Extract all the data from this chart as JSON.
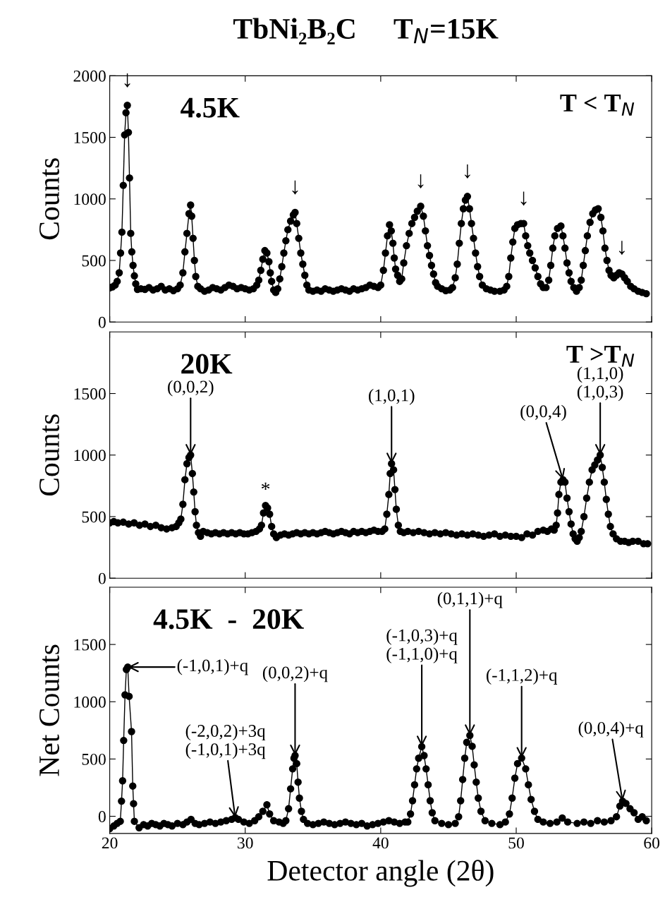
{
  "chart_data": [
    {
      "type": "line",
      "title": "TbNi₂B₂C     T$_{N}$=15K",
      "ylabel": "Counts",
      "marker": "circle",
      "line_style": "solid",
      "grid": false,
      "legend": false,
      "tick_labels": "y",
      "xlim": [
        20,
        60
      ],
      "xticks": [
        20,
        30,
        40,
        50,
        60
      ],
      "ylim": [
        0,
        2000
      ],
      "yticks": [
        0,
        500,
        1000,
        1500,
        2000
      ],
      "annotations": [
        "4.5K",
        "T < T$_{N}$",
        {
          "text": "↓",
          "x": 21.3,
          "y": 1760
        },
        {
          "text": "↓",
          "x": 33.68,
          "y": 890
        },
        {
          "text": "↓",
          "x": 42.95,
          "y": 940
        },
        {
          "text": "↓",
          "x": 46.4,
          "y": 1020
        },
        {
          "text": "↓",
          "x": 50.55,
          "y": 800
        },
        {
          "text": "↓",
          "x": 57.8,
          "y": 400
        }
      ],
      "series": [
        {
          "color": "#000000",
          "x": [
            20.0,
            20.2,
            20.4,
            20.55,
            20.7,
            20.8,
            20.9,
            21.0,
            21.1,
            21.2,
            21.3,
            21.38,
            21.46,
            21.55,
            21.63,
            21.72,
            21.82,
            21.92,
            22.05,
            22.3,
            22.6,
            22.9,
            23.2,
            23.5,
            23.8,
            24.1,
            24.4,
            24.7,
            25.0,
            25.2,
            25.4,
            25.55,
            25.7,
            25.85,
            25.97,
            26.05,
            26.15,
            26.25,
            26.35,
            26.5,
            26.7,
            27.0,
            27.3,
            27.6,
            27.9,
            28.2,
            28.5,
            28.8,
            29.1,
            29.4,
            29.7,
            30.0,
            30.3,
            30.6,
            30.85,
            31.0,
            31.15,
            31.3,
            31.45,
            31.6,
            31.75,
            31.85,
            31.95,
            32.1,
            32.25,
            32.4,
            32.55,
            32.7,
            32.85,
            33.0,
            33.15,
            33.35,
            33.55,
            33.68,
            33.8,
            33.95,
            34.1,
            34.25,
            34.4,
            34.55,
            34.7,
            35.0,
            35.3,
            35.6,
            35.9,
            36.2,
            36.5,
            36.8,
            37.1,
            37.4,
            37.7,
            38.0,
            38.3,
            38.6,
            38.9,
            39.2,
            39.5,
            39.8,
            40.0,
            40.2,
            40.35,
            40.5,
            40.65,
            40.78,
            40.9,
            41.0,
            41.1,
            41.25,
            41.4,
            41.55,
            41.7,
            41.9,
            42.1,
            42.3,
            42.5,
            42.7,
            42.95,
            43.15,
            43.3,
            43.45,
            43.6,
            43.75,
            43.9,
            44.05,
            44.2,
            44.5,
            44.8,
            45.1,
            45.3,
            45.5,
            45.65,
            45.8,
            45.95,
            46.1,
            46.25,
            46.4,
            46.55,
            46.7,
            46.85,
            47.0,
            47.15,
            47.3,
            47.5,
            47.8,
            48.1,
            48.4,
            48.8,
            49.1,
            49.3,
            49.45,
            49.6,
            49.75,
            49.9,
            50.1,
            50.35,
            50.55,
            50.7,
            50.85,
            51.0,
            51.2,
            51.4,
            51.6,
            51.8,
            52.0,
            52.2,
            52.4,
            52.55,
            52.7,
            52.85,
            53.05,
            53.3,
            53.45,
            53.6,
            53.75,
            53.9,
            54.05,
            54.25,
            54.45,
            54.65,
            54.8,
            54.95,
            55.1,
            55.25,
            55.45,
            55.65,
            55.85,
            56.05,
            56.25,
            56.4,
            56.55,
            56.7,
            56.85,
            57.0,
            57.2,
            57.4,
            57.6,
            57.8,
            58.0,
            58.2,
            58.45,
            58.7,
            59.0,
            59.3,
            59.6
          ],
          "values": [
            278,
            285,
            300,
            330,
            400,
            560,
            730,
            1110,
            1520,
            1700,
            1760,
            1540,
            1170,
            720,
            570,
            460,
            375,
            310,
            265,
            270,
            265,
            280,
            260,
            270,
            290,
            260,
            270,
            255,
            270,
            300,
            400,
            570,
            720,
            880,
            950,
            860,
            680,
            500,
            370,
            290,
            270,
            250,
            260,
            280,
            270,
            260,
            280,
            300,
            290,
            270,
            280,
            270,
            260,
            270,
            300,
            340,
            420,
            510,
            580,
            560,
            490,
            400,
            330,
            260,
            240,
            270,
            350,
            450,
            560,
            660,
            750,
            820,
            870,
            890,
            800,
            680,
            560,
            470,
            380,
            300,
            260,
            250,
            260,
            250,
            270,
            260,
            250,
            260,
            270,
            260,
            250,
            270,
            260,
            270,
            280,
            300,
            290,
            280,
            300,
            420,
            560,
            700,
            790,
            740,
            640,
            520,
            430,
            380,
            330,
            350,
            480,
            620,
            720,
            800,
            850,
            900,
            940,
            860,
            740,
            620,
            540,
            460,
            390,
            320,
            290,
            270,
            255,
            260,
            280,
            360,
            470,
            640,
            800,
            920,
            990,
            1020,
            920,
            800,
            680,
            560,
            450,
            370,
            300,
            270,
            260,
            250,
            250,
            260,
            290,
            370,
            520,
            650,
            760,
            790,
            800,
            800,
            700,
            620,
            560,
            500,
            440,
            370,
            310,
            280,
            280,
            340,
            460,
            600,
            700,
            760,
            780,
            700,
            600,
            480,
            400,
            330,
            280,
            250,
            280,
            340,
            460,
            580,
            700,
            810,
            880,
            910,
            920,
            850,
            740,
            600,
            500,
            420,
            380,
            360,
            380,
            400,
            390,
            360,
            330,
            290,
            270,
            250,
            240,
            230
          ]
        }
      ]
    },
    {
      "type": "line",
      "ylabel": "Counts",
      "marker": "circle",
      "line_style": "solid",
      "grid": false,
      "legend": false,
      "tick_labels": "y",
      "xlim": [
        20,
        60
      ],
      "xticks": [
        20,
        30,
        40,
        50,
        60
      ],
      "ylim": [
        0,
        2000
      ],
      "yticks": [
        0,
        500,
        1000,
        1500
      ],
      "annotations": [
        "20K",
        "T >T$_{N}$",
        {
          "text": "(0,0,2)",
          "x": 25.97,
          "y": 1000
        },
        {
          "text": "*",
          "x": 31.5,
          "y": 590
        },
        {
          "text": "(1,0,1)",
          "x": 40.8,
          "y": 930
        },
        {
          "text": "(0,0,4)",
          "x": 53.45,
          "y": 800
        },
        {
          "text": "(1,1,0)\n(1,0,3)",
          "x": 56.2,
          "y": 1000
        }
      ],
      "series": [
        {
          "color": "#000000",
          "x": [
            20.0,
            20.3,
            20.6,
            21.0,
            21.4,
            21.8,
            22.2,
            22.6,
            23.0,
            23.4,
            23.8,
            24.2,
            24.6,
            24.9,
            25.1,
            25.25,
            25.4,
            25.55,
            25.7,
            25.85,
            25.97,
            26.1,
            26.2,
            26.3,
            26.4,
            26.55,
            26.7,
            26.9,
            27.2,
            27.5,
            27.8,
            28.1,
            28.4,
            28.7,
            29.0,
            29.3,
            29.6,
            29.9,
            30.2,
            30.5,
            30.8,
            31.05,
            31.2,
            31.35,
            31.5,
            31.65,
            31.8,
            31.95,
            32.1,
            32.3,
            32.6,
            32.9,
            33.2,
            33.5,
            33.8,
            34.1,
            34.4,
            34.7,
            35.0,
            35.3,
            35.6,
            35.9,
            36.2,
            36.5,
            36.8,
            37.1,
            37.4,
            37.7,
            38.0,
            38.3,
            38.6,
            38.9,
            39.2,
            39.5,
            39.8,
            40.1,
            40.3,
            40.45,
            40.6,
            40.7,
            40.8,
            40.95,
            41.05,
            41.15,
            41.3,
            41.45,
            41.7,
            42.0,
            42.4,
            42.8,
            43.2,
            43.6,
            44.0,
            44.4,
            44.8,
            45.2,
            45.6,
            46.0,
            46.4,
            46.8,
            47.2,
            47.6,
            48.0,
            48.4,
            48.8,
            49.2,
            49.6,
            50.0,
            50.4,
            50.8,
            51.2,
            51.6,
            52.0,
            52.3,
            52.6,
            52.8,
            52.95,
            53.05,
            53.15,
            53.3,
            53.45,
            53.6,
            53.75,
            53.9,
            54.05,
            54.2,
            54.35,
            54.5,
            54.65,
            54.8,
            55.0,
            55.2,
            55.4,
            55.6,
            55.8,
            56.0,
            56.2,
            56.35,
            56.5,
            56.65,
            56.8,
            56.95,
            57.15,
            57.4,
            57.7,
            58.0,
            58.3,
            58.6,
            59.0,
            59.4,
            59.7
          ],
          "values": [
            450,
            460,
            450,
            455,
            440,
            450,
            430,
            440,
            420,
            430,
            410,
            400,
            410,
            420,
            450,
            480,
            600,
            800,
            930,
            980,
            1000,
            850,
            700,
            540,
            430,
            370,
            340,
            380,
            370,
            360,
            370,
            360,
            370,
            360,
            370,
            360,
            370,
            360,
            360,
            370,
            380,
            400,
            430,
            530,
            590,
            570,
            520,
            420,
            360,
            330,
            350,
            360,
            350,
            360,
            370,
            360,
            370,
            360,
            370,
            360,
            370,
            380,
            370,
            360,
            370,
            380,
            370,
            360,
            380,
            370,
            380,
            370,
            380,
            390,
            380,
            380,
            400,
            520,
            680,
            850,
            930,
            880,
            720,
            560,
            430,
            380,
            370,
            380,
            370,
            380,
            370,
            360,
            370,
            360,
            370,
            360,
            350,
            360,
            350,
            360,
            350,
            340,
            350,
            360,
            340,
            350,
            340,
            340,
            330,
            360,
            350,
            380,
            390,
            380,
            400,
            390,
            430,
            530,
            680,
            780,
            800,
            780,
            650,
            540,
            440,
            360,
            320,
            300,
            330,
            380,
            500,
            650,
            780,
            880,
            920,
            960,
            1000,
            900,
            780,
            640,
            520,
            420,
            360,
            320,
            300,
            300,
            290,
            300,
            300,
            280,
            280
          ]
        }
      ]
    },
    {
      "type": "line",
      "ylabel": "Net Counts",
      "xlabel": "Detector angle (2θ)",
      "marker": "circle",
      "line_style": "solid",
      "grid": false,
      "legend": false,
      "xlim": [
        20,
        60
      ],
      "xticks": [
        20,
        30,
        40,
        50,
        60
      ],
      "ylim": [
        -150,
        2000
      ],
      "yticks": [
        0,
        500,
        1000,
        1500
      ],
      "annotations": [
        "4.5K  -  20K",
        {
          "text": "(-1,0,1)+q",
          "x": 21.33,
          "y": 1303
        },
        {
          "text": "(-2,0,2)+3q\n(-1,0,1)+3q",
          "x": 29.26,
          "y": -12
        },
        {
          "text": "(0,0,2)+q",
          "x": 33.68,
          "y": 530
        },
        {
          "text": "(-1,0,3)+q\n(-1,1,0)+q",
          "x": 43.03,
          "y": 608
        },
        {
          "text": "(0,1,1)+q",
          "x": 46.58,
          "y": 706
        },
        {
          "text": "(-1,1,2)+q",
          "x": 50.4,
          "y": 508
        },
        {
          "text": "(0,0,4)+q",
          "x": 57.85,
          "y": 132
        }
      ],
      "series": [
        {
          "color": "#000000",
          "x": [
            20.0,
            20.3,
            20.55,
            20.78,
            20.87,
            20.95,
            21.03,
            21.13,
            21.23,
            21.33,
            21.43,
            21.61,
            21.7,
            21.76,
            21.82,
            22.17,
            22.5,
            22.8,
            23.1,
            23.4,
            23.7,
            24.0,
            24.3,
            24.6,
            25.0,
            25.4,
            25.7,
            26.0,
            26.3,
            26.6,
            27.0,
            27.4,
            27.8,
            28.2,
            28.6,
            29.0,
            29.26,
            29.5,
            29.9,
            30.3,
            30.7,
            31.0,
            31.3,
            31.6,
            31.8,
            32.1,
            32.5,
            32.8,
            33.0,
            33.2,
            33.35,
            33.5,
            33.6,
            33.68,
            33.8,
            33.9,
            34.0,
            34.15,
            34.3,
            34.6,
            35.0,
            35.4,
            35.8,
            36.2,
            36.6,
            37.0,
            37.4,
            37.8,
            38.2,
            38.6,
            39.0,
            39.4,
            39.8,
            40.2,
            40.6,
            41.0,
            41.4,
            41.8,
            42.0,
            42.2,
            42.35,
            42.5,
            42.65,
            42.8,
            43.03,
            43.2,
            43.35,
            43.5,
            43.65,
            43.8,
            44.0,
            44.5,
            45.0,
            45.5,
            45.75,
            45.9,
            46.05,
            46.2,
            46.35,
            46.58,
            46.75,
            46.9,
            47.05,
            47.2,
            47.4,
            47.7,
            48.2,
            48.8,
            49.2,
            49.5,
            49.7,
            49.9,
            50.1,
            50.4,
            50.7,
            50.9,
            51.1,
            51.35,
            51.6,
            52.0,
            52.5,
            53.0,
            53.4,
            53.8,
            54.5,
            55.0,
            55.5,
            56.0,
            56.5,
            57.0,
            57.4,
            57.65,
            57.85,
            58.1,
            58.4,
            58.7,
            59.0,
            59.3,
            59.6
          ],
          "values": [
            -108,
            -85,
            -62,
            -44,
            132,
            310,
            662,
            1060,
            1282,
            1303,
            1047,
            740,
            264,
            110,
            -44,
            -100,
            -73,
            -85,
            -62,
            -73,
            -85,
            -62,
            -73,
            -85,
            -62,
            -73,
            -50,
            -27,
            -62,
            -73,
            -62,
            -50,
            -62,
            -50,
            -38,
            -27,
            -12,
            -27,
            -50,
            -62,
            -38,
            -4,
            43,
            100,
            20,
            -38,
            -50,
            -62,
            -38,
            66,
            240,
            414,
            507,
            530,
            460,
            298,
            159,
            43,
            -27,
            -62,
            -73,
            -62,
            -50,
            -62,
            -73,
            -62,
            -50,
            -62,
            -73,
            -62,
            -85,
            -73,
            -62,
            -50,
            -38,
            -50,
            -62,
            -50,
            -50,
            20,
            136,
            275,
            414,
            507,
            608,
            530,
            414,
            275,
            136,
            31,
            -38,
            -62,
            -73,
            -62,
            -4,
            136,
            321,
            507,
            646,
            706,
            611,
            449,
            298,
            159,
            43,
            -38,
            -62,
            -73,
            -50,
            20,
            159,
            333,
            460,
            508,
            414,
            275,
            147,
            43,
            -27,
            -50,
            -62,
            -50,
            -15,
            -50,
            -62,
            -50,
            -62,
            -38,
            -50,
            -38,
            -4,
            89,
            132,
            112,
            66,
            31,
            -27,
            -4,
            -38
          ]
        }
      ]
    }
  ]
}
